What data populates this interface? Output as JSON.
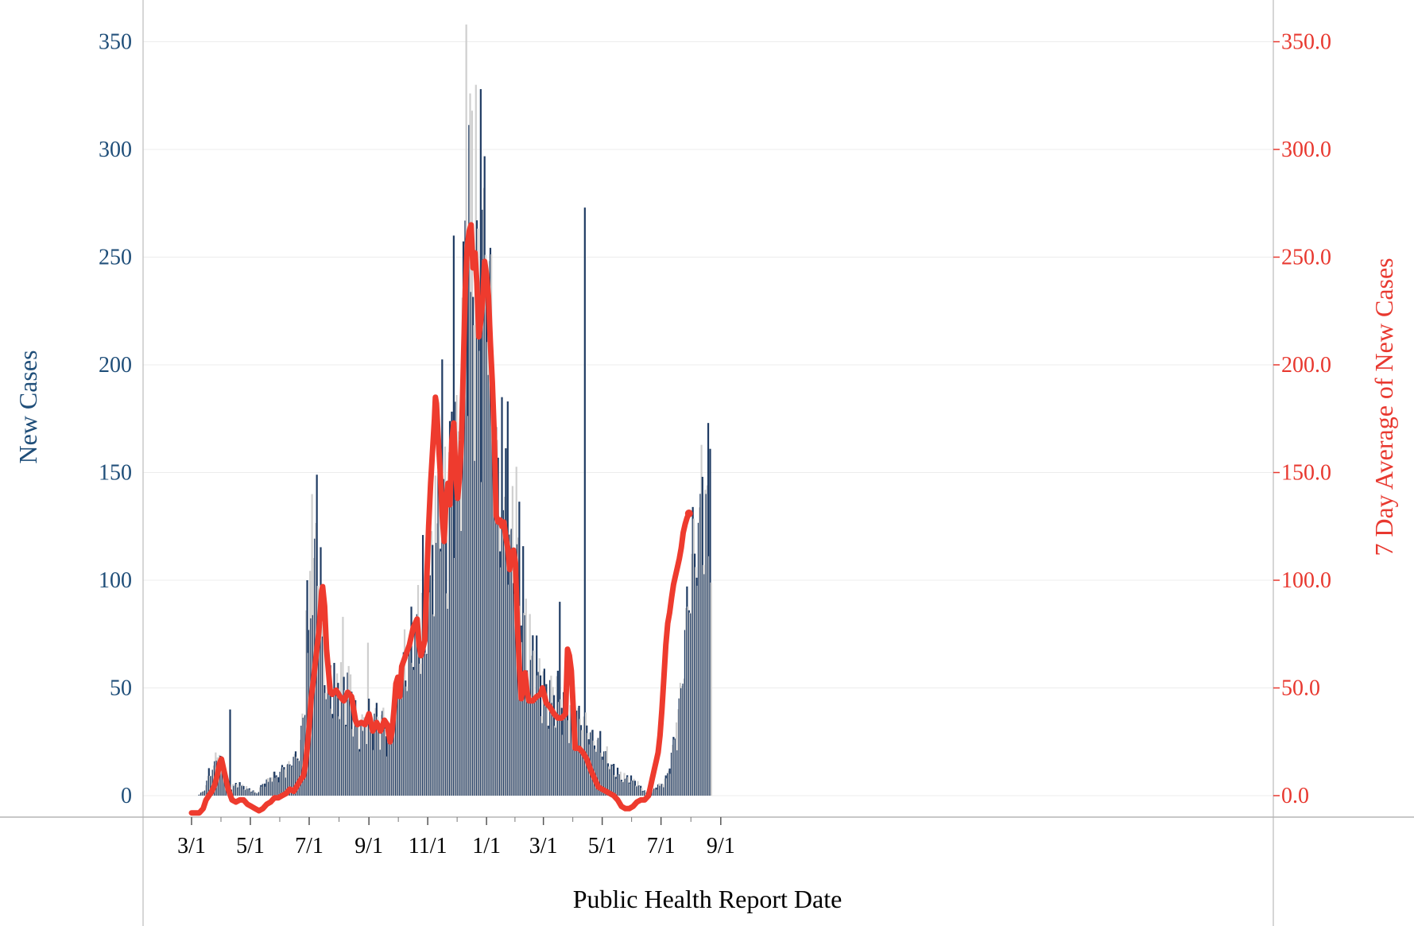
{
  "chart_data": {
    "type": "bar",
    "xlabel": "Public Health Report Date",
    "ylabel": "New Cases",
    "y2label": "7 Day Average of New Cases",
    "ylim": [
      -10,
      375
    ],
    "y_ticks": [
      "0",
      "50",
      "100",
      "150",
      "200",
      "250",
      "300",
      "350"
    ],
    "y2_ticks": [
      "0.0",
      "50.0",
      "100.0",
      "150.0",
      "200.0",
      "250.0",
      "300.0",
      "350.0"
    ],
    "x_tick_labels": [
      "3/1",
      "5/1",
      "7/1",
      "9/1",
      "11/1",
      "1/1",
      "3/1",
      "5/1",
      "7/1",
      "9/1"
    ],
    "x_tick_days": [
      0,
      61,
      122,
      184,
      245,
      306,
      365,
      426,
      487,
      549
    ],
    "grid": "horizontal",
    "colors": {
      "bars_dark": "#1f3b63",
      "bars_light": "#cfcfcf",
      "line": "#ee3b2e",
      "left_axis": "#1f4e79",
      "right_axis": "#e8382f"
    },
    "bar_series_name": "New Cases",
    "line_series_name": "7 Day Average of New Cases",
    "bar_anchors": [
      [
        7,
        0
      ],
      [
        14,
        3
      ],
      [
        18,
        10
      ],
      [
        22,
        12
      ],
      [
        25,
        16
      ],
      [
        27,
        22
      ],
      [
        30,
        18
      ],
      [
        33,
        12
      ],
      [
        36,
        6
      ],
      [
        40,
        3
      ],
      [
        45,
        5
      ],
      [
        50,
        5
      ],
      [
        55,
        4
      ],
      [
        60,
        3
      ],
      [
        64,
        2
      ],
      [
        68,
        1
      ],
      [
        72,
        4
      ],
      [
        76,
        6
      ],
      [
        80,
        7
      ],
      [
        84,
        10
      ],
      [
        88,
        9
      ],
      [
        92,
        10
      ],
      [
        96,
        14
      ],
      [
        100,
        13
      ],
      [
        104,
        16
      ],
      [
        108,
        18
      ],
      [
        112,
        20
      ],
      [
        114,
        30
      ],
      [
        116,
        38
      ],
      [
        118,
        45
      ],
      [
        120,
        55
      ],
      [
        122,
        70
      ],
      [
        124,
        95
      ],
      [
        126,
        108
      ],
      [
        128,
        115
      ],
      [
        130,
        120
      ],
      [
        132,
        110
      ],
      [
        134,
        88
      ],
      [
        136,
        70
      ],
      [
        138,
        62
      ],
      [
        140,
        60
      ],
      [
        142,
        52
      ],
      [
        145,
        50
      ],
      [
        150,
        48
      ],
      [
        155,
        50
      ],
      [
        158,
        48
      ],
      [
        160,
        45
      ],
      [
        165,
        50
      ],
      [
        168,
        40
      ],
      [
        172,
        32
      ],
      [
        176,
        30
      ],
      [
        180,
        35
      ],
      [
        184,
        38
      ],
      [
        188,
        32
      ],
      [
        192,
        36
      ],
      [
        196,
        34
      ],
      [
        200,
        35
      ],
      [
        204,
        28
      ],
      [
        208,
        30
      ],
      [
        212,
        45
      ],
      [
        216,
        58
      ],
      [
        220,
        60
      ],
      [
        224,
        62
      ],
      [
        228,
        70
      ],
      [
        232,
        78
      ],
      [
        236,
        80
      ],
      [
        240,
        70
      ],
      [
        244,
        85
      ],
      [
        248,
        100
      ],
      [
        252,
        115
      ],
      [
        256,
        130
      ],
      [
        258,
        155
      ],
      [
        260,
        165
      ],
      [
        262,
        150
      ],
      [
        264,
        135
      ],
      [
        266,
        125
      ],
      [
        268,
        140
      ],
      [
        270,
        160
      ],
      [
        272,
        170
      ],
      [
        274,
        155
      ],
      [
        276,
        150
      ],
      [
        278,
        160
      ],
      [
        280,
        185
      ],
      [
        282,
        215
      ],
      [
        284,
        250
      ],
      [
        286,
        268
      ],
      [
        288,
        275
      ],
      [
        290,
        262
      ],
      [
        292,
        240
      ],
      [
        294,
        245
      ],
      [
        296,
        232
      ],
      [
        298,
        212
      ],
      [
        300,
        225
      ],
      [
        302,
        245
      ],
      [
        304,
        255
      ],
      [
        306,
        248
      ],
      [
        308,
        238
      ],
      [
        310,
        230
      ],
      [
        312,
        210
      ],
      [
        314,
        190
      ],
      [
        316,
        165
      ],
      [
        318,
        140
      ],
      [
        320,
        128
      ],
      [
        324,
        125
      ],
      [
        328,
        130
      ],
      [
        332,
        115
      ],
      [
        336,
        118
      ],
      [
        340,
        112
      ],
      [
        344,
        90
      ],
      [
        348,
        72
      ],
      [
        352,
        65
      ],
      [
        356,
        62
      ],
      [
        360,
        58
      ],
      [
        364,
        48
      ],
      [
        368,
        46
      ],
      [
        372,
        45
      ],
      [
        376,
        46
      ],
      [
        380,
        48
      ],
      [
        384,
        44
      ],
      [
        388,
        40
      ],
      [
        392,
        38
      ],
      [
        396,
        36
      ],
      [
        400,
        36
      ],
      [
        404,
        35
      ],
      [
        408,
        34
      ],
      [
        410,
        33
      ],
      [
        414,
        28
      ],
      [
        418,
        26
      ],
      [
        422,
        25
      ],
      [
        426,
        22
      ],
      [
        430,
        19
      ],
      [
        434,
        16
      ],
      [
        438,
        12
      ],
      [
        442,
        10
      ],
      [
        446,
        9
      ],
      [
        450,
        8
      ],
      [
        454,
        8
      ],
      [
        458,
        7
      ],
      [
        462,
        6
      ],
      [
        466,
        4
      ],
      [
        470,
        2
      ],
      [
        474,
        1
      ],
      [
        478,
        2
      ],
      [
        482,
        4
      ],
      [
        486,
        5
      ],
      [
        490,
        6
      ],
      [
        494,
        10
      ],
      [
        498,
        18
      ],
      [
        502,
        28
      ],
      [
        506,
        40
      ],
      [
        510,
        60
      ],
      [
        514,
        85
      ],
      [
        518,
        105
      ],
      [
        522,
        118
      ],
      [
        526,
        125
      ],
      [
        530,
        130
      ],
      [
        534,
        135
      ],
      [
        538,
        130
      ]
    ],
    "bar_spikes": [
      [
        40,
        40
      ],
      [
        119,
        86
      ],
      [
        120,
        100
      ],
      [
        125,
        140
      ],
      [
        157,
        83
      ],
      [
        183,
        71
      ],
      [
        240,
        121
      ],
      [
        272,
        260
      ],
      [
        285,
        358
      ],
      [
        289,
        326
      ],
      [
        291,
        318
      ],
      [
        295,
        330
      ],
      [
        300,
        328
      ],
      [
        302,
        272
      ],
      [
        306,
        240
      ],
      [
        322,
        185
      ],
      [
        328,
        183
      ],
      [
        382,
        90
      ],
      [
        408,
        273
      ],
      [
        503,
        34
      ],
      [
        520,
        134
      ],
      [
        530,
        148
      ],
      [
        533,
        142
      ],
      [
        536,
        173
      ],
      [
        538,
        161
      ]
    ],
    "avg_anchors": [
      [
        0,
        -8
      ],
      [
        8,
        -8
      ],
      [
        12,
        -6
      ],
      [
        15,
        -2
      ],
      [
        18,
        0
      ],
      [
        21,
        2
      ],
      [
        24,
        5
      ],
      [
        27,
        10
      ],
      [
        29,
        15
      ],
      [
        31,
        17
      ],
      [
        34,
        11
      ],
      [
        38,
        3
      ],
      [
        42,
        -2
      ],
      [
        46,
        -3
      ],
      [
        50,
        -2
      ],
      [
        54,
        -2
      ],
      [
        58,
        -4
      ],
      [
        62,
        -5
      ],
      [
        66,
        -6
      ],
      [
        70,
        -7
      ],
      [
        74,
        -6
      ],
      [
        78,
        -4
      ],
      [
        82,
        -3
      ],
      [
        86,
        -1
      ],
      [
        90,
        -1
      ],
      [
        94,
        0
      ],
      [
        98,
        1
      ],
      [
        102,
        3
      ],
      [
        106,
        2
      ],
      [
        110,
        5
      ],
      [
        114,
        8
      ],
      [
        116,
        9
      ],
      [
        118,
        14
      ],
      [
        120,
        22
      ],
      [
        122,
        32
      ],
      [
        124,
        45
      ],
      [
        126,
        52
      ],
      [
        128,
        60
      ],
      [
        130,
        68
      ],
      [
        132,
        76
      ],
      [
        134,
        88
      ],
      [
        135,
        95
      ],
      [
        136,
        97
      ],
      [
        138,
        88
      ],
      [
        140,
        68
      ],
      [
        142,
        58
      ],
      [
        144,
        48
      ],
      [
        146,
        47
      ],
      [
        150,
        49
      ],
      [
        154,
        46
      ],
      [
        158,
        44
      ],
      [
        162,
        48
      ],
      [
        166,
        46
      ],
      [
        170,
        35
      ],
      [
        172,
        33
      ],
      [
        176,
        34
      ],
      [
        180,
        33
      ],
      [
        184,
        38
      ],
      [
        188,
        30
      ],
      [
        192,
        34
      ],
      [
        196,
        30
      ],
      [
        200,
        35
      ],
      [
        203,
        33
      ],
      [
        206,
        25
      ],
      [
        208,
        30
      ],
      [
        210,
        40
      ],
      [
        212,
        52
      ],
      [
        214,
        55
      ],
      [
        216,
        46
      ],
      [
        218,
        60
      ],
      [
        222,
        65
      ],
      [
        226,
        70
      ],
      [
        230,
        78
      ],
      [
        234,
        82
      ],
      [
        236,
        70
      ],
      [
        238,
        65
      ],
      [
        242,
        72
      ],
      [
        244,
        100
      ],
      [
        246,
        125
      ],
      [
        248,
        145
      ],
      [
        250,
        160
      ],
      [
        252,
        175
      ],
      [
        253,
        185
      ],
      [
        254,
        182
      ],
      [
        256,
        165
      ],
      [
        258,
        150
      ],
      [
        260,
        130
      ],
      [
        262,
        118
      ],
      [
        264,
        138
      ],
      [
        266,
        145
      ],
      [
        268,
        135
      ],
      [
        270,
        165
      ],
      [
        272,
        173
      ],
      [
        274,
        150
      ],
      [
        276,
        138
      ],
      [
        278,
        148
      ],
      [
        280,
        165
      ],
      [
        282,
        200
      ],
      [
        284,
        235
      ],
      [
        286,
        255
      ],
      [
        288,
        262
      ],
      [
        290,
        265
      ],
      [
        292,
        245
      ],
      [
        294,
        252
      ],
      [
        296,
        238
      ],
      [
        298,
        213
      ],
      [
        300,
        220
      ],
      [
        302,
        230
      ],
      [
        304,
        248
      ],
      [
        306,
        242
      ],
      [
        308,
        232
      ],
      [
        310,
        210
      ],
      [
        312,
        192
      ],
      [
        314,
        168
      ],
      [
        316,
        130
      ],
      [
        318,
        127
      ],
      [
        320,
        128
      ],
      [
        322,
        125
      ],
      [
        324,
        127
      ],
      [
        326,
        120
      ],
      [
        328,
        115
      ],
      [
        330,
        105
      ],
      [
        332,
        112
      ],
      [
        334,
        114
      ],
      [
        336,
        108
      ],
      [
        338,
        80
      ],
      [
        340,
        60
      ],
      [
        342,
        45
      ],
      [
        344,
        50
      ],
      [
        346,
        57
      ],
      [
        348,
        48
      ],
      [
        350,
        44
      ],
      [
        354,
        44
      ],
      [
        358,
        46
      ],
      [
        362,
        47
      ],
      [
        364,
        50
      ],
      [
        368,
        43
      ],
      [
        372,
        41
      ],
      [
        376,
        38
      ],
      [
        380,
        36
      ],
      [
        384,
        36
      ],
      [
        388,
        38
      ],
      [
        390,
        68
      ],
      [
        392,
        65
      ],
      [
        394,
        58
      ],
      [
        396,
        40
      ],
      [
        398,
        22
      ],
      [
        402,
        22
      ],
      [
        406,
        20
      ],
      [
        410,
        17
      ],
      [
        414,
        12
      ],
      [
        418,
        8
      ],
      [
        422,
        4
      ],
      [
        426,
        3
      ],
      [
        430,
        2
      ],
      [
        434,
        1
      ],
      [
        438,
        0
      ],
      [
        442,
        -2
      ],
      [
        446,
        -5
      ],
      [
        450,
        -6
      ],
      [
        454,
        -6
      ],
      [
        458,
        -5
      ],
      [
        462,
        -3
      ],
      [
        466,
        -2
      ],
      [
        470,
        -2
      ],
      [
        474,
        0
      ],
      [
        476,
        4
      ],
      [
        478,
        8
      ],
      [
        480,
        12
      ],
      [
        482,
        16
      ],
      [
        484,
        20
      ],
      [
        486,
        28
      ],
      [
        488,
        40
      ],
      [
        490,
        55
      ],
      [
        492,
        70
      ],
      [
        494,
        80
      ],
      [
        496,
        85
      ],
      [
        498,
        92
      ],
      [
        500,
        98
      ],
      [
        502,
        102
      ],
      [
        504,
        106
      ],
      [
        506,
        110
      ],
      [
        508,
        115
      ],
      [
        510,
        122
      ],
      [
        512,
        126
      ],
      [
        514,
        129
      ],
      [
        516,
        131
      ]
    ],
    "n_days": 539
  }
}
